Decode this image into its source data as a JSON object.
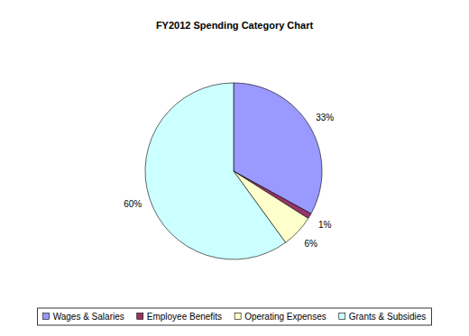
{
  "chart_data": {
    "type": "pie",
    "title": "FY2012 Spending Category Chart",
    "categories": [
      "Wages & Salaries",
      "Employee Benefits",
      "Operating Expenses",
      "Grants & Subsidies"
    ],
    "values": [
      33,
      1,
      6,
      60
    ],
    "value_labels": [
      "33%",
      "1%",
      "6%",
      "60%"
    ],
    "colors": [
      "#9999ff",
      "#993366",
      "#ffffcc",
      "#ccffff"
    ],
    "data_labels": true,
    "legend": "bottom"
  }
}
